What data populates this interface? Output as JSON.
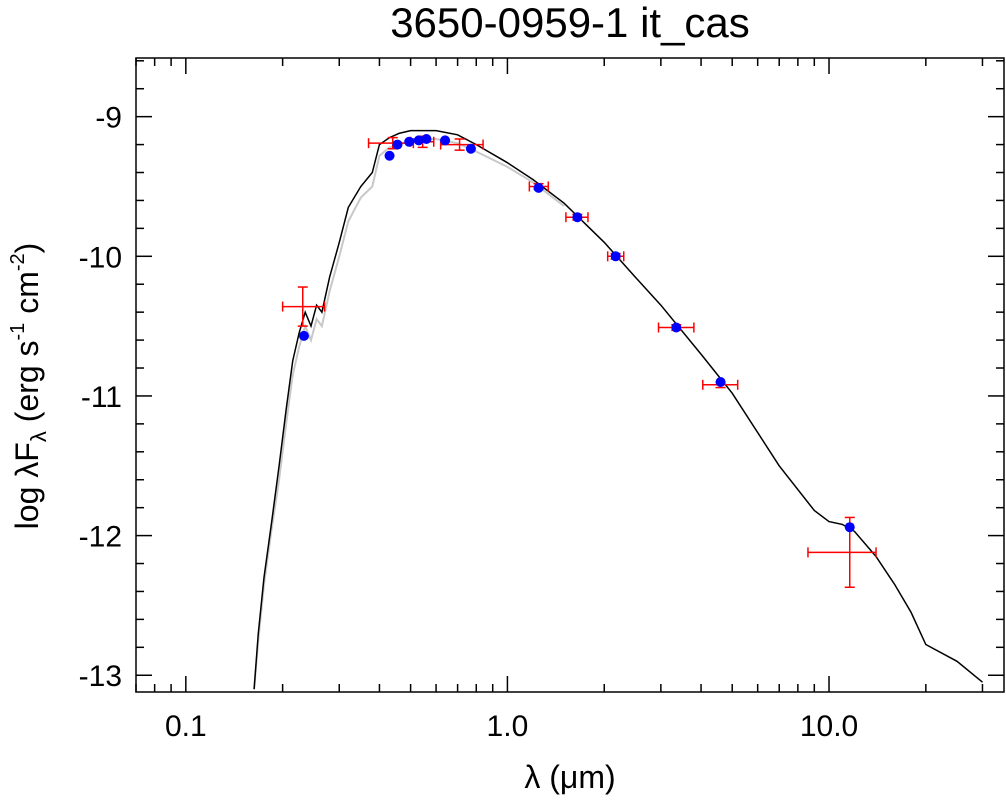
{
  "chart_data": {
    "type": "scatter",
    "title": "3650-0959-1   it_cas",
    "xlabel": "λ (μm)",
    "ylabel_parts": {
      "base": "log λF",
      "sub": "λ",
      "unit_a": " (erg s",
      "exp_a": "-1",
      "unit_b": " cm",
      "exp_b": "-2",
      "close": ")"
    },
    "x_scale": "log",
    "xlim": [
      0.07,
      35
    ],
    "ylim": [
      -13.12,
      -8.58
    ],
    "x_ticks": [
      0.1,
      1.0,
      10.0
    ],
    "x_tick_labels": [
      "0.1",
      "1.0",
      "10.0"
    ],
    "y_ticks": [
      -9,
      -10,
      -11,
      -12,
      -13
    ],
    "y_tick_labels": [
      "-9",
      "-10",
      "-11",
      "-12",
      "-13"
    ],
    "grid": false,
    "colors": {
      "model": "#000000",
      "model_alt": "#c8c8c8",
      "observed": "#ff0000",
      "synthetic": "#0000ff"
    },
    "model_sed": [
      [
        0.163,
        -13.1
      ],
      [
        0.168,
        -12.7
      ],
      [
        0.175,
        -12.3
      ],
      [
        0.185,
        -11.9
      ],
      [
        0.195,
        -11.5
      ],
      [
        0.205,
        -11.1
      ],
      [
        0.215,
        -10.75
      ],
      [
        0.225,
        -10.55
      ],
      [
        0.235,
        -10.4
      ],
      [
        0.245,
        -10.5
      ],
      [
        0.255,
        -10.35
      ],
      [
        0.265,
        -10.4
      ],
      [
        0.28,
        -10.15
      ],
      [
        0.3,
        -9.9
      ],
      [
        0.32,
        -9.65
      ],
      [
        0.35,
        -9.5
      ],
      [
        0.38,
        -9.4
      ],
      [
        0.4,
        -9.2
      ],
      [
        0.43,
        -9.15
      ],
      [
        0.46,
        -9.12
      ],
      [
        0.5,
        -9.1
      ],
      [
        0.6,
        -9.1
      ],
      [
        0.7,
        -9.13
      ],
      [
        0.8,
        -9.2
      ],
      [
        1.0,
        -9.33
      ],
      [
        1.2,
        -9.45
      ],
      [
        1.5,
        -9.62
      ],
      [
        2.0,
        -9.9
      ],
      [
        2.5,
        -10.15
      ],
      [
        3.0,
        -10.35
      ],
      [
        4.0,
        -10.7
      ],
      [
        5.0,
        -10.98
      ],
      [
        7.0,
        -11.5
      ],
      [
        9.0,
        -11.82
      ],
      [
        10.0,
        -11.9
      ],
      [
        11.0,
        -11.92
      ],
      [
        12.0,
        -11.97
      ],
      [
        14.0,
        -12.15
      ],
      [
        16.0,
        -12.35
      ],
      [
        18.0,
        -12.55
      ],
      [
        20.0,
        -12.78
      ],
      [
        25.0,
        -12.9
      ],
      [
        30.0,
        -13.05
      ]
    ],
    "model_sed_alt": [
      [
        0.163,
        -13.1
      ],
      [
        0.168,
        -12.75
      ],
      [
        0.175,
        -12.35
      ],
      [
        0.185,
        -11.95
      ],
      [
        0.195,
        -11.6
      ],
      [
        0.205,
        -11.2
      ],
      [
        0.215,
        -10.85
      ],
      [
        0.225,
        -10.65
      ],
      [
        0.235,
        -10.5
      ],
      [
        0.245,
        -10.6
      ],
      [
        0.255,
        -10.45
      ],
      [
        0.265,
        -10.5
      ],
      [
        0.28,
        -10.25
      ],
      [
        0.3,
        -10.0
      ],
      [
        0.32,
        -9.75
      ],
      [
        0.35,
        -9.58
      ],
      [
        0.38,
        -9.5
      ],
      [
        0.4,
        -9.28
      ],
      [
        0.43,
        -9.22
      ],
      [
        0.46,
        -9.2
      ],
      [
        0.5,
        -9.17
      ],
      [
        0.6,
        -9.16
      ],
      [
        0.7,
        -9.19
      ],
      [
        0.8,
        -9.25
      ],
      [
        1.0,
        -9.36
      ],
      [
        1.2,
        -9.47
      ],
      [
        1.5,
        -9.64
      ]
    ],
    "observed": [
      {
        "x": 0.231,
        "y": -10.36,
        "xlo": 0.2,
        "xhi": 0.27,
        "ylo": -10.5,
        "yhi": -10.22
      },
      {
        "x": 0.44,
        "y": -9.19,
        "xlo": 0.37,
        "xhi": 0.51,
        "ylo": -9.23,
        "yhi": -9.15
      },
      {
        "x": 0.545,
        "y": -9.18,
        "xlo": 0.5,
        "xhi": 0.59,
        "ylo": -9.22,
        "yhi": -9.14
      },
      {
        "x": 0.71,
        "y": -9.2,
        "xlo": 0.62,
        "xhi": 0.84,
        "ylo": -9.24,
        "yhi": -9.16
      },
      {
        "x": 1.25,
        "y": -9.5,
        "xlo": 1.17,
        "xhi": 1.34,
        "ylo": -9.52,
        "yhi": -9.48
      },
      {
        "x": 1.65,
        "y": -9.72,
        "xlo": 1.52,
        "xhi": 1.78,
        "ylo": -9.74,
        "yhi": -9.7
      },
      {
        "x": 2.17,
        "y": -10.0,
        "xlo": 2.05,
        "xhi": 2.3,
        "ylo": -10.02,
        "yhi": -9.98
      },
      {
        "x": 3.35,
        "y": -10.51,
        "xlo": 2.95,
        "xhi": 3.8,
        "ylo": -10.53,
        "yhi": -10.49
      },
      {
        "x": 4.6,
        "y": -10.92,
        "xlo": 4.05,
        "xhi": 5.2,
        "ylo": -10.94,
        "yhi": -10.9
      },
      {
        "x": 11.6,
        "y": -12.12,
        "xlo": 8.6,
        "xhi": 14.0,
        "ylo": -12.37,
        "yhi": -11.87
      }
    ],
    "synthetic": [
      [
        0.233,
        -10.57
      ],
      [
        0.43,
        -9.28
      ],
      [
        0.455,
        -9.2
      ],
      [
        0.495,
        -9.18
      ],
      [
        0.53,
        -9.17
      ],
      [
        0.56,
        -9.16
      ],
      [
        0.64,
        -9.17
      ],
      [
        0.77,
        -9.23
      ],
      [
        1.25,
        -9.51
      ],
      [
        1.65,
        -9.72
      ],
      [
        2.17,
        -10.0
      ],
      [
        3.35,
        -10.51
      ],
      [
        4.6,
        -10.9
      ],
      [
        11.6,
        -11.94
      ]
    ]
  }
}
